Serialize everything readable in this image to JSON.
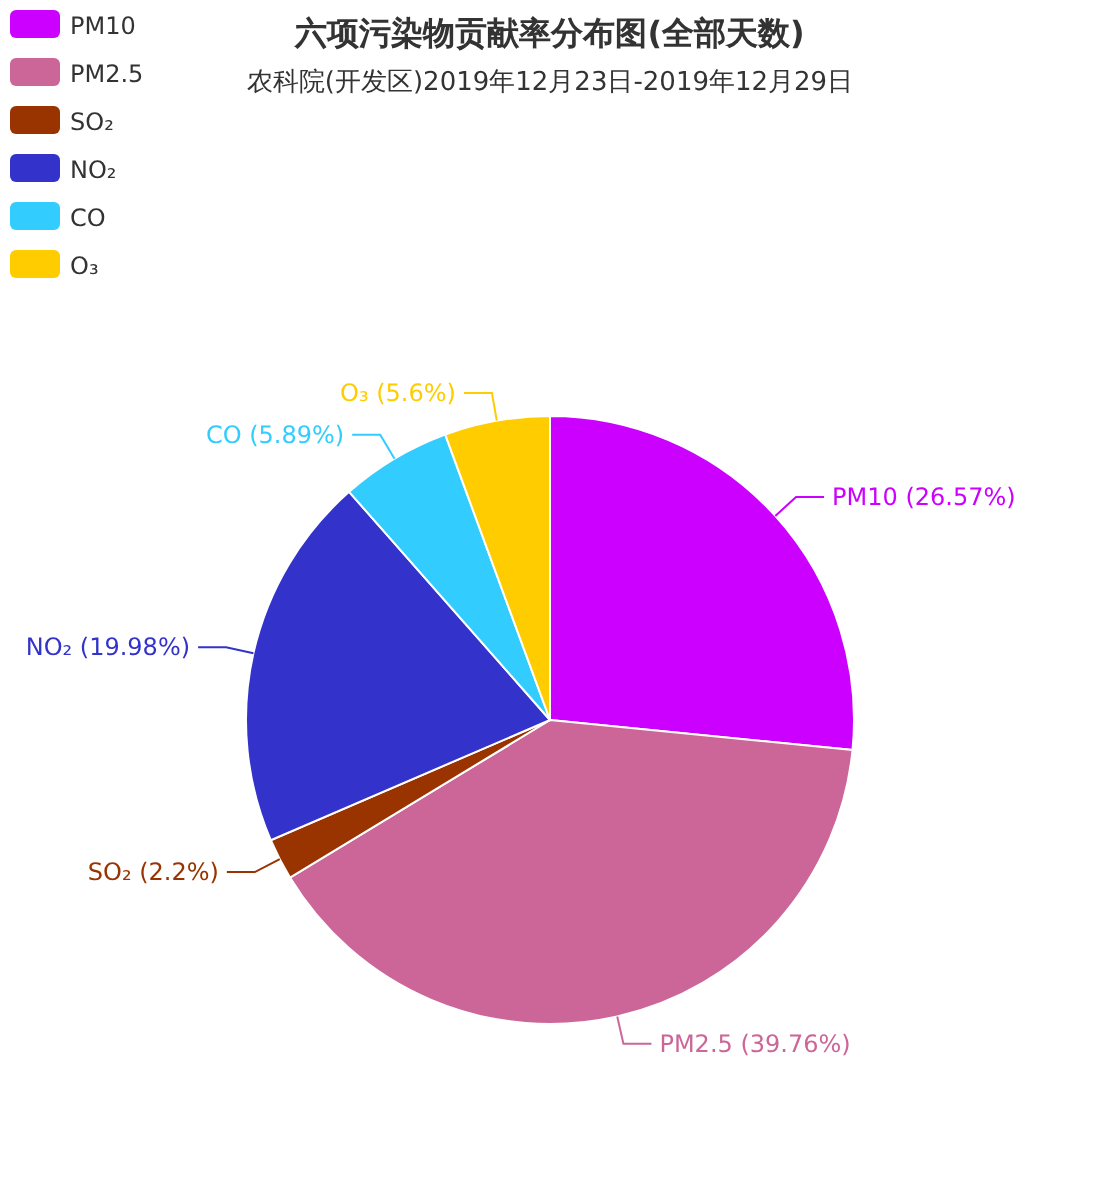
{
  "chart_data": {
    "type": "pie",
    "title": "六项污染物贡献率分布图(全部天数)",
    "subtitle": "农科院(开发区)2019年12月23日-2019年12月29日",
    "categories": [
      "PM10",
      "PM2.5",
      "SO₂",
      "NO₂",
      "CO",
      "O₃"
    ],
    "values": [
      26.57,
      39.76,
      2.2,
      19.98,
      5.89,
      5.6
    ],
    "colors": [
      "#cc00ff",
      "#cc6699",
      "#993300",
      "#3333cc",
      "#33ccff",
      "#ffcc00"
    ],
    "value_labels": [
      "(26.57%)",
      "(39.76%)",
      "(2.2%)",
      "(19.98%)",
      "(5.89%)",
      "(5.6%)"
    ],
    "legend": "top left"
  }
}
